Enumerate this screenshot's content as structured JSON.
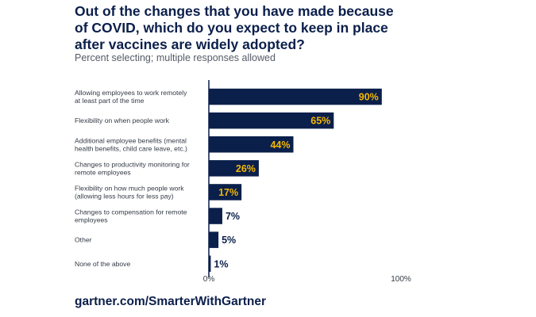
{
  "chart_data": {
    "type": "bar",
    "orientation": "horizontal",
    "title": "Out of the changes that you have made because of COVID, which do you expect to keep in place after vaccines are widely adopted?",
    "subtitle": "Percent selecting; multiple responses allowed",
    "categories": [
      [
        "Allowing employees to work remotely",
        "at least part of the time"
      ],
      [
        "Flexibility on when people work"
      ],
      [
        "Additional employee benefits (mental",
        "health benefits, child care leave, etc.)"
      ],
      [
        "Changes to productivity monitoring for",
        "remote employees"
      ],
      [
        "Flexibility on how much people work",
        "(allowing less hours for less pay)"
      ],
      [
        "Changes to compensation for remote",
        "employees"
      ],
      [
        "Other"
      ],
      [
        "None of the above"
      ]
    ],
    "values": [
      90,
      65,
      44,
      26,
      17,
      7,
      5,
      1
    ],
    "value_labels": [
      "90%",
      "65%",
      "44%",
      "26%",
      "17%",
      "7%",
      "5%",
      "1%"
    ],
    "xlim": [
      0,
      100
    ],
    "tick_labels": [
      "0%",
      "100%"
    ],
    "grid": false,
    "colors": {
      "bar": "#0b1f4b",
      "label_inside": "#f5b800",
      "label_outside": "#0b1f4b"
    }
  },
  "footer": "gartner.com/SmarterWithGartner"
}
